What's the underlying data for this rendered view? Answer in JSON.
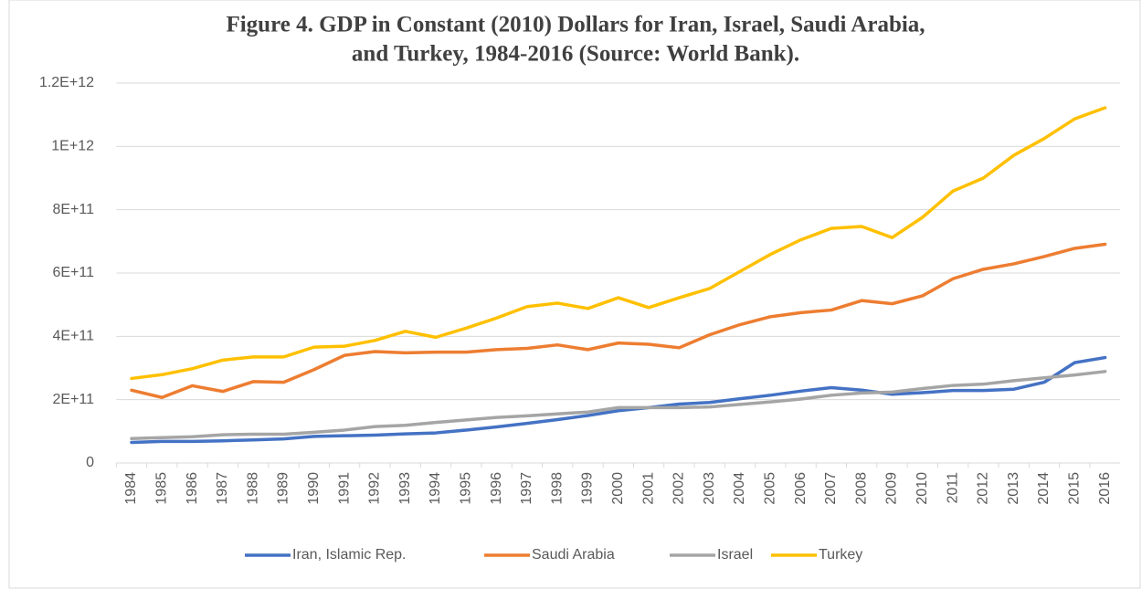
{
  "chart_data": {
    "type": "line",
    "title": [
      "Figure 4. GDP in Constant (2010) Dollars for Iran, Israel, Saudi Arabia,",
      "and Turkey, 1984-2016 (Source: World Bank)."
    ],
    "categories": [
      "1984",
      "1985",
      "1986",
      "1987",
      "1988",
      "1989",
      "1990",
      "1991",
      "1992",
      "1993",
      "1994",
      "1995",
      "1996",
      "1997",
      "1998",
      "1999",
      "2000",
      "2001",
      "2002",
      "2003",
      "2004",
      "2005",
      "2006",
      "2007",
      "2008",
      "2009",
      "2010",
      "2011",
      "2012",
      "2013",
      "2014",
      "2015",
      "2016"
    ],
    "series": [
      {
        "name": "Iran, Islamic Rep.",
        "color": "#4472c4",
        "values": [
          65000000000,
          68000000000,
          68000000000,
          70000000000,
          73000000000,
          76000000000,
          84000000000,
          86000000000,
          88000000000,
          92000000000,
          95000000000,
          104000000000,
          114000000000,
          125000000000,
          137000000000,
          150000000000,
          165000000000,
          175000000000,
          186000000000,
          191000000000,
          203000000000,
          214000000000,
          227000000000,
          238000000000,
          230000000000,
          217000000000,
          222000000000,
          229000000000,
          229000000000,
          233000000000,
          255000000000,
          317000000000,
          333000000000
        ]
      },
      {
        "name": "Saudi Arabia",
        "color": "#ed7d31",
        "values": [
          230000000000,
          207000000000,
          244000000000,
          226000000000,
          257000000000,
          255000000000,
          295000000000,
          340000000000,
          352000000000,
          348000000000,
          350000000000,
          350000000000,
          358000000000,
          362000000000,
          373000000000,
          358000000000,
          379000000000,
          375000000000,
          364000000000,
          405000000000,
          437000000000,
          462000000000,
          475000000000,
          483000000000,
          513000000000,
          503000000000,
          528000000000,
          582000000000,
          612000000000,
          629000000000,
          652000000000,
          678000000000,
          691000000000
        ]
      },
      {
        "name": "Israel",
        "color": "#a5a5a5",
        "values": [
          77000000000,
          80000000000,
          83000000000,
          89000000000,
          91000000000,
          91000000000,
          97000000000,
          104000000000,
          115000000000,
          119000000000,
          128000000000,
          136000000000,
          144000000000,
          149000000000,
          155000000000,
          161000000000,
          175000000000,
          175000000000,
          175000000000,
          177000000000,
          185000000000,
          193000000000,
          202000000000,
          214000000000,
          221000000000,
          224000000000,
          235000000000,
          245000000000,
          249000000000,
          260000000000,
          269000000000,
          278000000000,
          289000000000
        ]
      },
      {
        "name": "Turkey",
        "color": "#ffc000",
        "values": [
          267000000000,
          279000000000,
          298000000000,
          325000000000,
          335000000000,
          335000000000,
          366000000000,
          369000000000,
          387000000000,
          416000000000,
          397000000000,
          426000000000,
          458000000000,
          494000000000,
          505000000000,
          488000000000,
          522000000000,
          491000000000,
          522000000000,
          551000000000,
          605000000000,
          659000000000,
          705000000000,
          741000000000,
          747000000000,
          712000000000,
          776000000000,
          859000000000,
          900000000000,
          972000000000,
          1025000000000,
          1087000000000,
          1122000000000
        ]
      }
    ],
    "ylim": [
      0,
      1200000000000
    ],
    "yticks": [
      0,
      {
        "value": 200000000000,
        "label": "2E+11"
      },
      {
        "value": 400000000000,
        "label": "4E+11"
      },
      {
        "value": 600000000000,
        "label": "6E+11"
      },
      {
        "value": 800000000000,
        "label": "8E+11"
      },
      {
        "value": 1000000000000,
        "label": "1E+12"
      },
      {
        "value": 1200000000000,
        "label": "1.2E+12"
      }
    ],
    "grid": true,
    "legend": "bottom"
  }
}
